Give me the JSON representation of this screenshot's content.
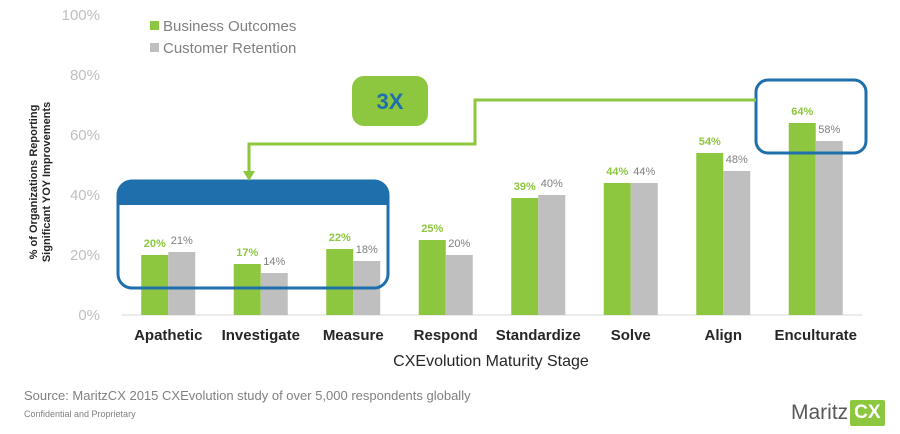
{
  "chart_data": {
    "type": "bar",
    "ylabel": [
      "% of Organizations Reporting",
      "Significant YOY Improvements"
    ],
    "xlabel": "CXEvolution Maturity Stage",
    "ylim": [
      0,
      100
    ],
    "yticks": [
      0,
      20,
      40,
      60,
      80,
      100
    ],
    "ytick_labels": [
      "0%",
      "20%",
      "40%",
      "60%",
      "80%",
      "100%"
    ],
    "grid": false,
    "legend": "top-left",
    "categories": [
      "Apathetic",
      "Investigate",
      "Measure",
      "Respond",
      "Standardize",
      "Solve",
      "Align",
      "Enculturate"
    ],
    "series": [
      {
        "name": "Business Outcomes",
        "color": "#8dc63f",
        "label_color": "#8dc63f",
        "values": [
          20,
          17,
          22,
          25,
          39,
          44,
          54,
          64
        ],
        "labels": [
          "20%",
          "17%",
          "22%",
          "25%",
          "39%",
          "44%",
          "54%",
          "64%"
        ]
      },
      {
        "name": "Customer Retention",
        "color": "#bfbfbf",
        "label_color": "#7f7f7f",
        "values": [
          21,
          14,
          18,
          20,
          40,
          44,
          48,
          58
        ],
        "labels": [
          "21%",
          "14%",
          "18%",
          "20%",
          "40%",
          "44%",
          "48%",
          "58%"
        ]
      }
    ],
    "annotation": {
      "text": "3X",
      "color": "#8dc63f",
      "box_color": "#1f6fad"
    }
  },
  "footer": {
    "source": "Source: MaritzCX 2015 CXEvolution study of over 5,000 respondents globally",
    "confidential": "Confidential and Proprietary"
  },
  "brand": {
    "name": "Maritz",
    "badge": "CX"
  }
}
